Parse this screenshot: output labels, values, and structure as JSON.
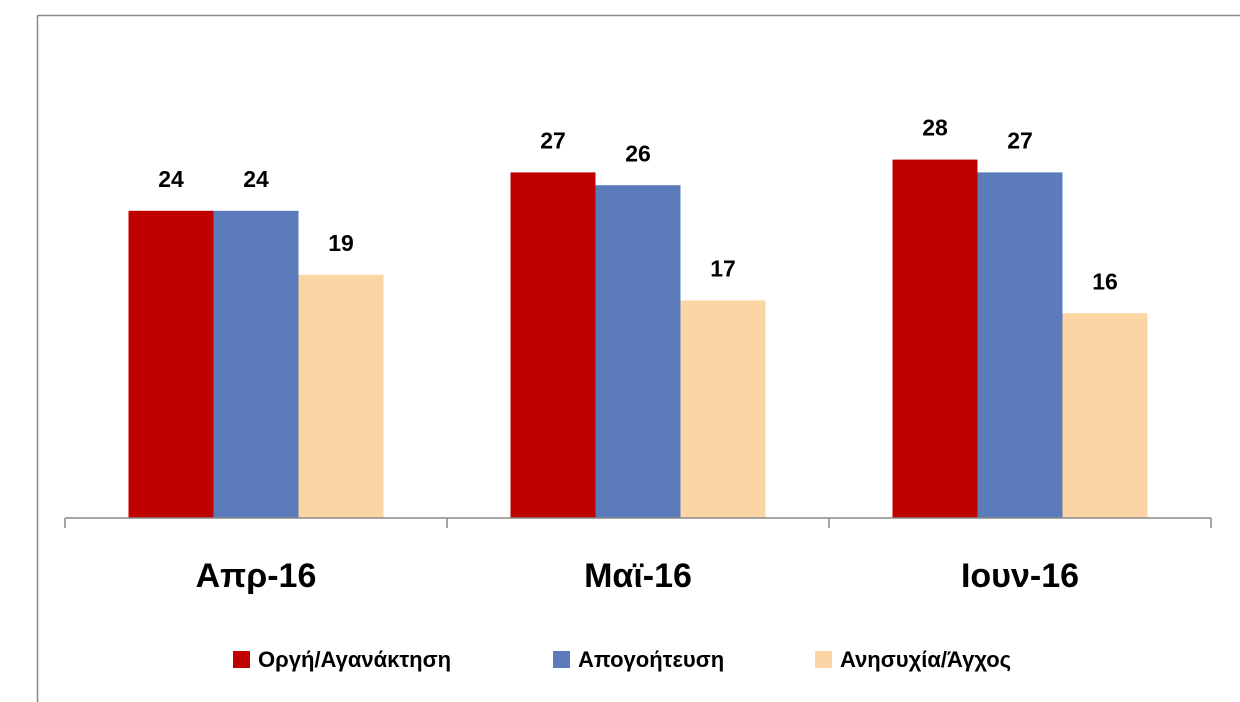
{
  "chart_data": {
    "type": "bar",
    "categories": [
      "Απρ-16",
      "Μαϊ-16",
      "Ιουν-16"
    ],
    "series": [
      {
        "name": "Οργή/Αγανάκτηση",
        "color": "#c00000",
        "values": [
          24,
          27,
          28
        ]
      },
      {
        "name": "Απογοήτευση",
        "color": "#5b7bbb",
        "values": [
          24,
          26,
          27
        ]
      },
      {
        "name": "Ανησυχία/Άγχος",
        "color": "#fcd5a5",
        "values": [
          19,
          17,
          16
        ]
      }
    ],
    "ylim": [
      0,
      30
    ],
    "legend": "bottom"
  }
}
